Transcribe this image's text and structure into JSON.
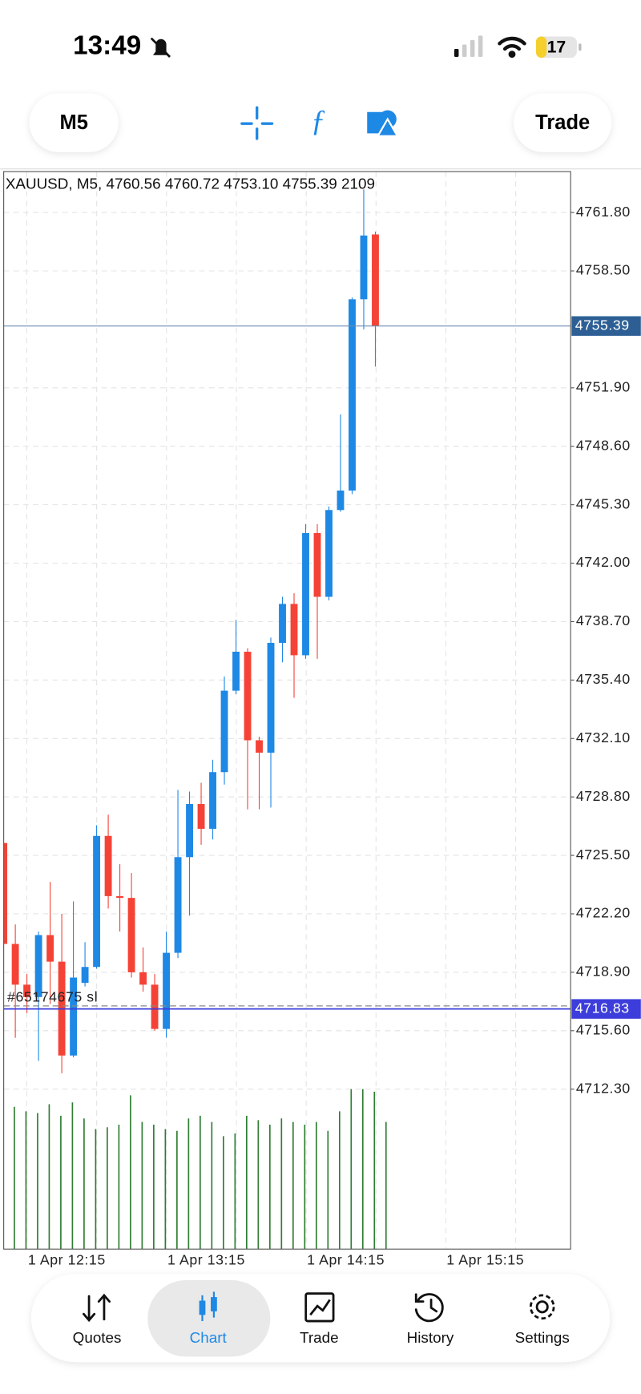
{
  "status_bar": {
    "time": "13:49",
    "battery": "17"
  },
  "toolbar": {
    "timeframe": "M5",
    "action": "Trade"
  },
  "chart": {
    "type": "candlestick",
    "header": {
      "symbol": "XAUUSD, M5,",
      "open": "4760.56",
      "high": "4760.72",
      "low": "4753.10",
      "close": "4755.39",
      "volume": "2109"
    },
    "open": [
      4726.2,
      4720.5,
      4718.2,
      4717.5,
      4721.0,
      4719.5,
      4714.2,
      4718.3,
      4719.2,
      4726.6,
      4723.2,
      4723.1,
      4718.9,
      4718.2,
      4715.7,
      4720.0,
      4725.4,
      4728.4,
      4727.0,
      4730.2,
      4734.8,
      4737.0,
      4732.0,
      4731.3,
      4737.5,
      4739.7,
      4736.8,
      4743.7,
      4740.1,
      4745.0,
      4746.1,
      4756.9,
      4760.56
    ],
    "high": [
      4726.2,
      4721.6,
      4718.8,
      4721.2,
      4724.0,
      4722.2,
      4722.9,
      4720.6,
      4727.2,
      4727.8,
      4725.0,
      4724.5,
      4720.3,
      4718.8,
      4721.2,
      4729.2,
      4729.1,
      4729.6,
      4730.9,
      4735.6,
      4738.8,
      4737.2,
      4732.2,
      4737.8,
      4740.1,
      4740.3,
      4744.2,
      4744.2,
      4745.2,
      4750.4,
      4757.0,
      4763.1,
      4760.72
    ],
    "low": [
      4720.5,
      4715.2,
      4716.6,
      4713.9,
      4717.1,
      4713.2,
      4714.1,
      4718.1,
      4719.1,
      4722.5,
      4721.2,
      4718.6,
      4717.8,
      4715.6,
      4715.2,
      4719.7,
      4722.1,
      4726.1,
      4726.4,
      4729.5,
      4734.6,
      4728.1,
      4728.1,
      4728.2,
      4736.4,
      4734.4,
      4736.6,
      4736.6,
      4739.9,
      4744.9,
      4745.9,
      4755.2,
      4753.1
    ],
    "close": [
      4720.5,
      4718.2,
      4717.5,
      4721.0,
      4719.5,
      4714.2,
      4718.6,
      4719.2,
      4726.6,
      4723.2,
      4723.1,
      4718.9,
      4718.2,
      4715.7,
      4720.0,
      4725.4,
      4728.4,
      4727.0,
      4730.2,
      4734.8,
      4737.0,
      4732.0,
      4731.3,
      4737.5,
      4739.7,
      4736.8,
      4743.7,
      4740.1,
      4745.0,
      4746.1,
      4756.9,
      4760.5,
      4755.39
    ],
    "volume": [
      2360,
      2286,
      2257,
      2404,
      2213,
      2434,
      2168,
      1991,
      2021,
      2065,
      2552,
      2109,
      2065,
      1991,
      1962,
      2168,
      2213,
      2109,
      1873,
      1918,
      2213,
      2139,
      2065,
      2168,
      2109,
      2065,
      2109,
      1962,
      2286,
      2655,
      2655,
      2611,
      2109
    ],
    "up_color": "#1e88e5",
    "down_color": "#f44336",
    "volume_color": "#2e7d32",
    "ylim": [
      4703.27,
      4764.11
    ],
    "yticks": [
      {
        "value": 4761.8,
        "label": "4761.80"
      },
      {
        "value": 4758.5,
        "label": "4758.50"
      },
      {
        "value": 4751.9,
        "label": "4751.90"
      },
      {
        "value": 4748.6,
        "label": "4748.60"
      },
      {
        "value": 4745.3,
        "label": "4745.30"
      },
      {
        "value": 4742,
        "label": "4742.00"
      },
      {
        "value": 4738.7,
        "label": "4738.70"
      },
      {
        "value": 4735.4,
        "label": "4735.40"
      },
      {
        "value": 4732.1,
        "label": "4732.10"
      },
      {
        "value": 4728.8,
        "label": "4728.80"
      },
      {
        "value": 4725.5,
        "label": "4725.50"
      },
      {
        "value": 4722.2,
        "label": "4722.20"
      },
      {
        "value": 4718.9,
        "label": "4718.90"
      },
      {
        "value": 4715.6,
        "label": "4715.60"
      },
      {
        "value": 4712.3,
        "label": "4712.30"
      }
    ],
    "xticks": [
      "1 Apr 12:15",
      "1 Apr 13:15",
      "1 Apr 14:15",
      "1 Apr 15:15"
    ],
    "grid": true,
    "order_line": {
      "value": 4716.83,
      "color": "#3d3ddb"
    },
    "sl_line": {
      "value": 4717.0,
      "label": "#65174675 sl"
    }
  },
  "nav": {
    "items": [
      "Quotes",
      "Chart",
      "Trade",
      "History",
      "Settings"
    ],
    "active": 1
  }
}
